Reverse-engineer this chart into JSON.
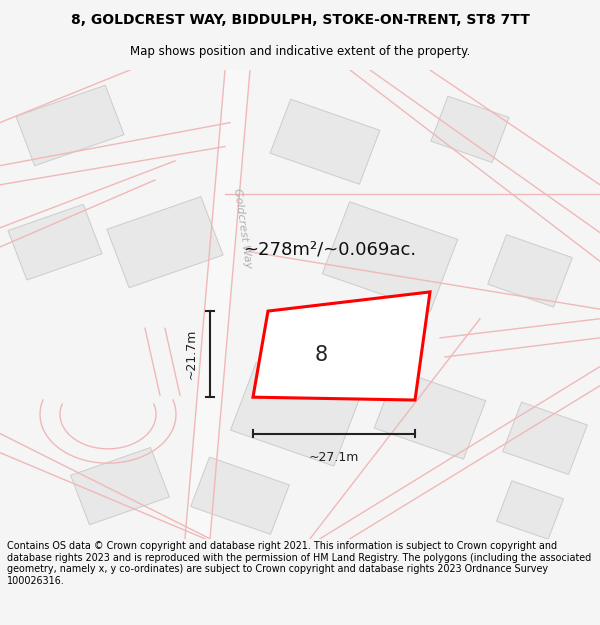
{
  "title_line1": "8, GOLDCREST WAY, BIDDULPH, STOKE-ON-TRENT, ST8 7TT",
  "title_line2": "Map shows position and indicative extent of the property.",
  "footer_text": "Contains OS data © Crown copyright and database right 2021. This information is subject to Crown copyright and database rights 2023 and is reproduced with the permission of HM Land Registry. The polygons (including the associated geometry, namely x, y co-ordinates) are subject to Crown copyright and database rights 2023 Ordnance Survey 100026316.",
  "area_text": "~278m²/~0.069ac.",
  "label_number": "8",
  "dim_width": "~27.1m",
  "dim_height": "~21.7m",
  "road_label": "Goldcrest Way",
  "title_color": "#000000",
  "footer_color": "#000000",
  "bg_color": "#f5f5f5",
  "map_bg": "#ffffff",
  "building_fill": "#e8e8e8",
  "building_edge": "#cccccc",
  "road_color": "#f0b8b8",
  "road_fill": "#ffffff",
  "plot_edge": "#ff0000",
  "plot_fill": "#ffffff",
  "dim_color": "#222222",
  "road_label_color": "#b0b0b0"
}
